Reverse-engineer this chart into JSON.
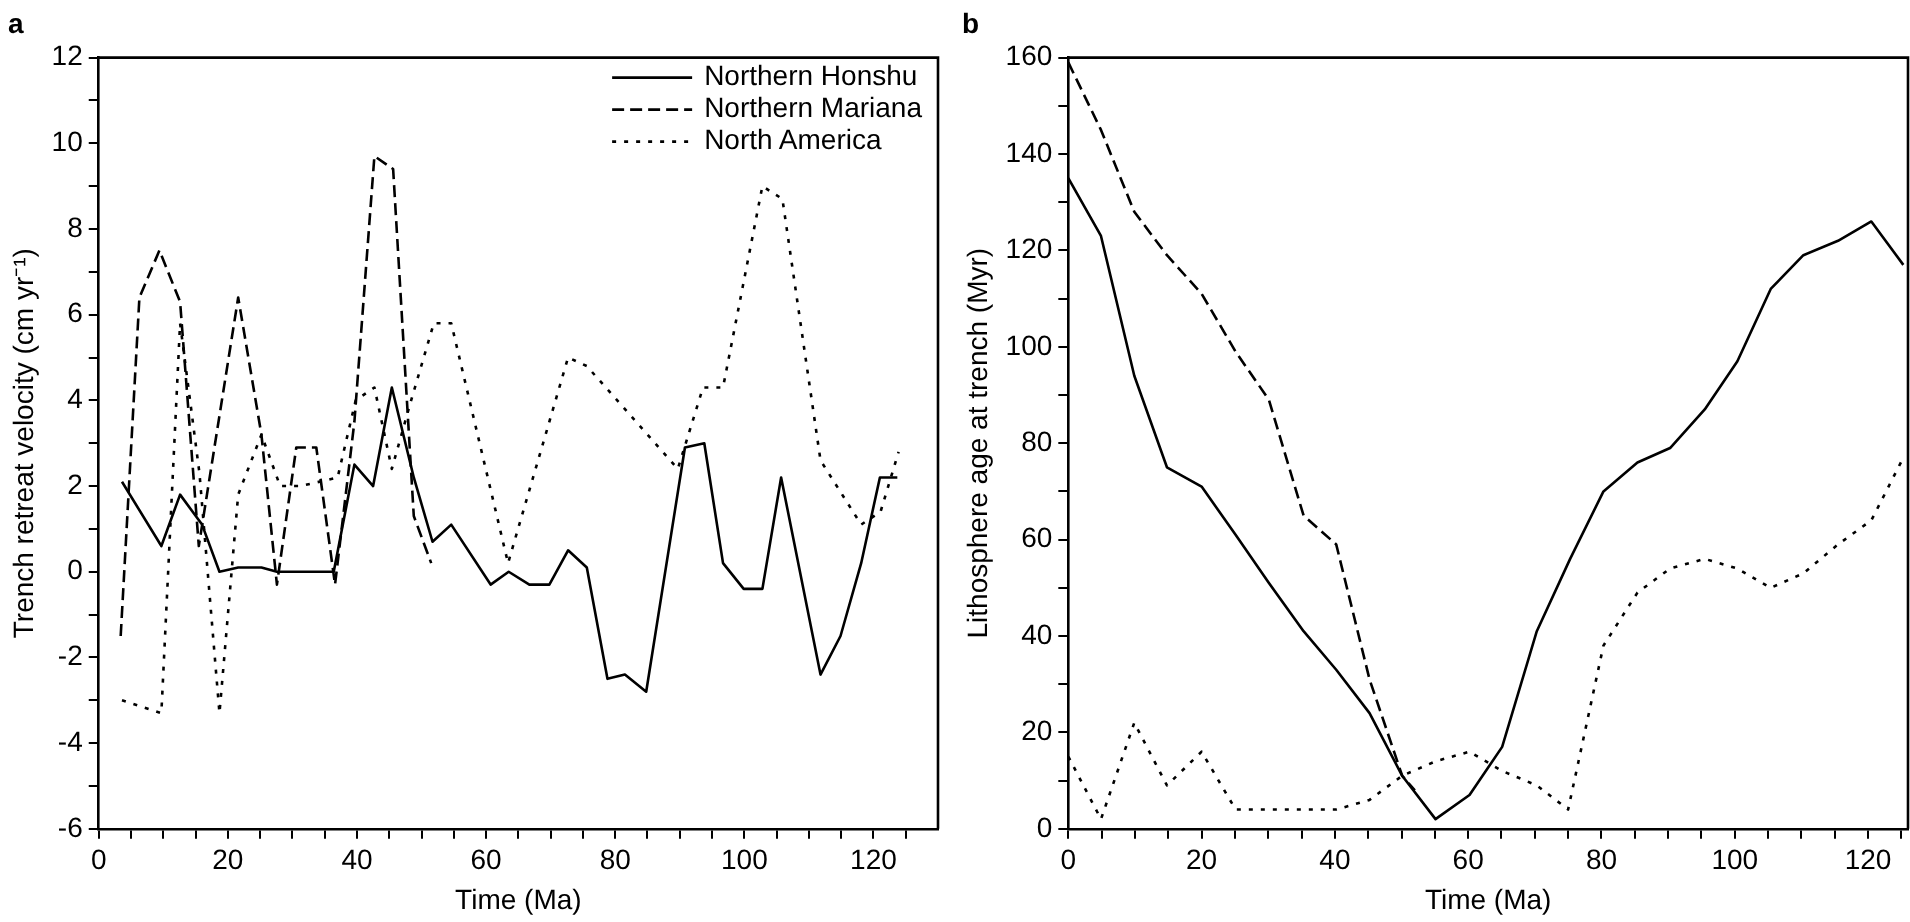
{
  "chart_data": [
    {
      "type": "line",
      "title": "a",
      "xlabel": "Time (Ma)",
      "ylabel": "Trench retreat velocity (cm yr⁻¹)",
      "legend": "top right",
      "xlim": [
        0,
        130
      ],
      "xticks": [
        0,
        {
          "value": 5,
          "label": null
        },
        {
          "value": 10,
          "label": null
        },
        {
          "value": 15,
          "label": null
        },
        20,
        {
          "value": 25,
          "label": null
        },
        {
          "value": 30,
          "label": null
        },
        {
          "value": 35,
          "label": null
        },
        40,
        {
          "value": 45,
          "label": null
        },
        {
          "value": 50,
          "label": null
        },
        {
          "value": 55,
          "label": null
        },
        60,
        {
          "value": 65,
          "label": null
        },
        {
          "value": 70,
          "label": null
        },
        {
          "value": 75,
          "label": null
        },
        80,
        {
          "value": 85,
          "label": null
        },
        {
          "value": 90,
          "label": null
        },
        {
          "value": 95,
          "label": null
        },
        100,
        {
          "value": 105,
          "label": null
        },
        {
          "value": 110,
          "label": null
        },
        {
          "value": 115,
          "label": null
        },
        120,
        {
          "value": 125,
          "label": null
        }
      ],
      "ylim": [
        -6,
        12
      ],
      "yticks": [
        -6,
        {
          "value": -5,
          "label": null
        },
        -4,
        {
          "value": -3,
          "label": null
        },
        -2,
        {
          "value": -1,
          "label": null
        },
        0,
        {
          "value": 1,
          "label": null
        },
        2,
        {
          "value": 3,
          "label": null
        },
        4,
        {
          "value": 5,
          "label": null
        },
        6,
        {
          "value": 7,
          "label": null
        },
        8,
        {
          "value": 9,
          "label": null
        },
        10,
        {
          "value": 11,
          "label": null
        },
        12
      ],
      "series": [
        {
          "name": "Northern Honshu",
          "color": "#000000",
          "line_style": "solid",
          "x": [
            3.6,
            9.7,
            12.6,
            16,
            18.7,
            21.6,
            25.2,
            27.6,
            31.3,
            36.4,
            39.6,
            42.5,
            45.4,
            48.8,
            51.7,
            54.6,
            60.7,
            63.5,
            66.7,
            69.8,
            72.7,
            75.6,
            78.8,
            81.5,
            84.8,
            90.8,
            93.8,
            96.7,
            99.9,
            102.8,
            105.7,
            111.8,
            114.9,
            118.1,
            121,
            123.7
          ],
          "values": [
            2.1,
            0.6,
            1.8,
            1.1,
            0,
            0.1,
            0.1,
            0,
            0,
            0,
            2.5,
            2,
            4.3,
            2.2,
            0.7,
            1.1,
            -0.3,
            0,
            -0.3,
            -0.3,
            0.5,
            0.1,
            -2.5,
            -2.4,
            -2.8,
            2.9,
            3,
            0.2,
            -0.4,
            -0.4,
            2.2,
            -2.4,
            -1.5,
            0.2,
            2.2,
            2.2
          ]
        },
        {
          "name": "Northern Mariana",
          "color": "#000000",
          "line_style": "dashed",
          "x": [
            3.4,
            6.3,
            9.4,
            12.6,
            15.5,
            21.6,
            25.2,
            27.6,
            30.6,
            33.7,
            36.6,
            39.6,
            42.7,
            45.6,
            48.8,
            51.5
          ],
          "values": [
            -1.5,
            6.4,
            7.5,
            6.3,
            0.6,
            6.4,
            3.2,
            -0.3,
            2.9,
            2.9,
            -0.3,
            3.5,
            9.7,
            9.4,
            1.3,
            0.2
          ]
        },
        {
          "name": "North America",
          "color": "#000000",
          "line_style": "dotted",
          "x": [
            3.6,
            9.7,
            12.6,
            15.6,
            18.7,
            21.6,
            25.2,
            28.1,
            31.3,
            37,
            39.8,
            42.7,
            45.4,
            48.2,
            51.9,
            54.6,
            63.4,
            72.7,
            75.6,
            89.7,
            93.6,
            96.7,
            102.8,
            105.9,
            111.8,
            118.1,
            121.1,
            123.9
          ],
          "values": [
            -3,
            -3.3,
            5.8,
            2.3,
            -3.3,
            1.8,
            3.2,
            2,
            2,
            2.2,
            4,
            4.3,
            2.4,
            3.9,
            5.8,
            5.8,
            0.2,
            5,
            4.8,
            2.4,
            4.3,
            4.3,
            9,
            8.7,
            2.6,
            1.1,
            1.4,
            2.8
          ]
        }
      ]
    },
    {
      "type": "line",
      "title": "b",
      "xlabel": "Time (Ma)",
      "ylabel": "Lithosphere age at trench (Myr)",
      "xlim": [
        0,
        126
      ],
      "xticks": [
        0,
        {
          "value": 5,
          "label": null
        },
        {
          "value": 10,
          "label": null
        },
        {
          "value": 15,
          "label": null
        },
        20,
        {
          "value": 25,
          "label": null
        },
        {
          "value": 30,
          "label": null
        },
        {
          "value": 35,
          "label": null
        },
        40,
        {
          "value": 45,
          "label": null
        },
        {
          "value": 50,
          "label": null
        },
        {
          "value": 55,
          "label": null
        },
        60,
        {
          "value": 65,
          "label": null
        },
        {
          "value": 70,
          "label": null
        },
        {
          "value": 75,
          "label": null
        },
        80,
        {
          "value": 85,
          "label": null
        },
        {
          "value": 90,
          "label": null
        },
        {
          "value": 95,
          "label": null
        },
        100,
        {
          "value": 105,
          "label": null
        },
        {
          "value": 110,
          "label": null
        },
        {
          "value": 115,
          "label": null
        },
        120,
        {
          "value": 125,
          "label": null
        }
      ],
      "ylim": [
        0,
        160
      ],
      "yticks": [
        0,
        {
          "value": 10,
          "label": null
        },
        20,
        {
          "value": 30,
          "label": null
        },
        40,
        {
          "value": 50,
          "label": null
        },
        60,
        {
          "value": 70,
          "label": null
        },
        80,
        {
          "value": 90,
          "label": null
        },
        100,
        {
          "value": 110,
          "label": null
        },
        120,
        {
          "value": 130,
          "label": null
        },
        140,
        {
          "value": 150,
          "label": null
        },
        160
      ],
      "series": [
        {
          "color": "#000000",
          "line_style": "solid",
          "x": [
            0,
            4.9,
            9.9,
            14.8,
            20,
            25.1,
            30.1,
            35.3,
            40.2,
            45.2,
            50.1,
            55.1,
            60.2,
            65.1,
            70.3,
            75.3,
            80.3,
            85.4,
            90.3,
            95.5,
            100.4,
            105.4,
            110.3,
            115.5,
            120.5,
            125.3
          ],
          "values": [
            135,
            123,
            94,
            75,
            71,
            61,
            51,
            41,
            33,
            24,
            11,
            2,
            7,
            17,
            41,
            56,
            70,
            76,
            79,
            87,
            97,
            112,
            119,
            122,
            126,
            117
          ]
        },
        {
          "color": "#000000",
          "line_style": "dashed",
          "x": [
            0,
            4.9,
            9.9,
            14.8,
            20,
            25.1,
            30.1,
            35.3,
            40.2,
            45.2,
            50.1,
            52
          ],
          "values": [
            159,
            145,
            128,
            119,
            111,
            99,
            89,
            65,
            59,
            31,
            11,
            8
          ]
        },
        {
          "color": "#000000",
          "line_style": "dotted",
          "x": [
            0,
            4.9,
            9.9,
            14.8,
            20,
            25.1,
            30.1,
            35.3,
            40.2,
            45.2,
            50.1,
            55.1,
            60.2,
            65.1,
            70.3,
            75,
            80.3,
            85.4,
            90.3,
            95.5,
            100.4,
            105.4,
            110.3,
            115.5,
            120.5,
            125.3
          ],
          "values": [
            15,
            2,
            22,
            9,
            16,
            4,
            4,
            4,
            4,
            6,
            11,
            14,
            16,
            12,
            9,
            4,
            38,
            49,
            54,
            56,
            54,
            50,
            53,
            59,
            64,
            77
          ]
        }
      ]
    }
  ]
}
